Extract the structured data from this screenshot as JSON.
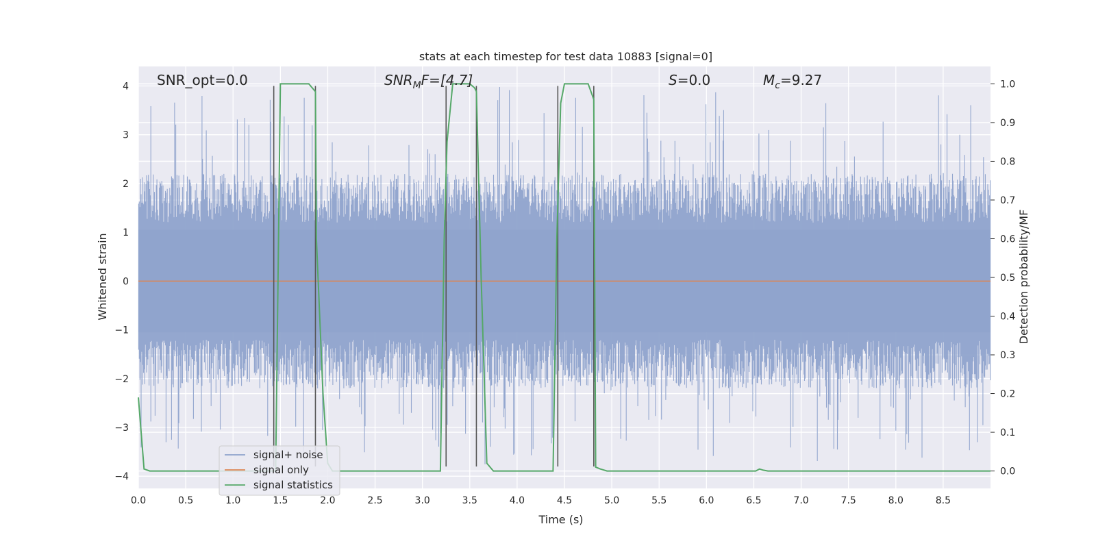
{
  "chart_data": {
    "type": "line",
    "title": "stats at each timestep for test data 10883 [signal=0]",
    "xlabel": "Time (s)",
    "ylabel": "Whitened strain",
    "ylabel_right": "Detection probability/MF",
    "xlim": [
      0,
      9
    ],
    "ylim": [
      -4.25,
      4.4
    ],
    "ylim_right": [
      -0.045,
      1.045
    ],
    "x_ticks": [
      "0.0",
      "0.5",
      "1.0",
      "1.5",
      "2.0",
      "2.5",
      "3.0",
      "3.5",
      "4.0",
      "4.5",
      "5.0",
      "5.5",
      "6.0",
      "6.5",
      "7.0",
      "7.5",
      "8.0",
      "8.5"
    ],
    "y_ticks": [
      "−4",
      "−3",
      "−2",
      "−1",
      "0",
      "1",
      "2",
      "3",
      "4"
    ],
    "y_right_ticks": [
      "0.0",
      "0.1",
      "0.2",
      "0.3",
      "0.4",
      "0.5",
      "0.6",
      "0.7",
      "0.8",
      "0.9",
      "1.0"
    ],
    "annotations": {
      "snr_opt": "SNR_opt=0.0",
      "snr_mf_base": "SNR",
      "snr_mf_sub": "M",
      "snr_mf_rest": "F=[4.7]",
      "s_italic": "S",
      "s_rest": "=0.0",
      "mc_base": "M",
      "mc_sub": "c",
      "mc_rest": "=9.27"
    },
    "legend": {
      "position": "lower-left",
      "entries": [
        "signal+ noise",
        "signal only",
        "signal statistics"
      ]
    },
    "colors": {
      "noise": "#8fa3cc",
      "signal": "#dd8452",
      "stats": "#55a868",
      "vlines": "#555555",
      "background": "#eaeaf2",
      "grid": "#ffffff"
    },
    "noise_envelope": {
      "description_free_param": "strain amplitude band",
      "typical_max": 2.0,
      "typical_min": -2.0,
      "peak_max": 4.0,
      "peak_min": -3.8
    },
    "signal_only": {
      "x": [
        0,
        9
      ],
      "y": [
        0,
        0
      ]
    },
    "detection_lines_x": [
      1.43,
      1.87,
      3.25,
      3.57,
      4.43,
      4.81
    ],
    "series": [
      {
        "name": "signal statistics",
        "axis": "right",
        "x": [
          0.0,
          0.06,
          0.12,
          0.2,
          1.4,
          1.45,
          1.48,
          1.5,
          1.55,
          1.6,
          1.7,
          1.8,
          1.87,
          1.88,
          1.95,
          2.0,
          2.05,
          2.1,
          2.2,
          3.1,
          3.19,
          3.23,
          3.26,
          3.32,
          3.38,
          3.5,
          3.55,
          3.57,
          3.62,
          3.68,
          3.75,
          3.85,
          4.38,
          4.42,
          4.46,
          4.5,
          4.6,
          4.75,
          4.81,
          4.83,
          4.88,
          4.95,
          5.0,
          6.45,
          6.52,
          6.56,
          6.6,
          6.65,
          9.0
        ],
        "y": [
          0.19,
          0.005,
          0.0,
          0.0,
          0.0,
          0.0,
          0.6,
          1.0,
          1.0,
          1.0,
          1.0,
          1.0,
          0.98,
          0.6,
          0.2,
          0.02,
          0.0,
          0.0,
          0.0,
          0.0,
          0.0,
          0.6,
          0.85,
          1.0,
          1.0,
          1.0,
          0.99,
          0.98,
          0.5,
          0.02,
          0.0,
          0.0,
          0.0,
          0.6,
          0.95,
          1.0,
          1.0,
          1.0,
          0.96,
          0.01,
          0.005,
          0.0,
          0.0,
          0.0,
          0.0,
          0.005,
          0.002,
          0.0,
          0.0
        ]
      }
    ],
    "grid": true
  }
}
